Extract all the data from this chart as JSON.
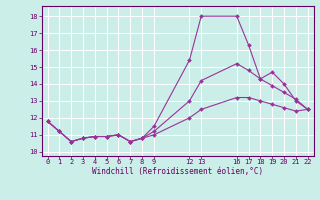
{
  "xlabel": "Windchill (Refroidissement éolien,°C)",
  "background_color": "#cceee8",
  "grid_color": "#ffffff",
  "line_color": "#993399",
  "xlim": [
    -0.5,
    22.5
  ],
  "ylim": [
    9.75,
    18.6
  ],
  "yticks": [
    10,
    11,
    12,
    13,
    14,
    15,
    16,
    17,
    18
  ],
  "xticks": [
    0,
    1,
    2,
    3,
    4,
    5,
    6,
    7,
    8,
    9,
    12,
    13,
    16,
    17,
    18,
    19,
    20,
    21,
    22
  ],
  "series": [
    {
      "x": [
        0,
        1,
        2,
        3,
        4,
        5,
        6,
        7,
        8,
        9,
        12,
        13,
        16,
        17,
        18,
        19,
        20,
        21,
        22
      ],
      "y": [
        11.8,
        11.2,
        10.6,
        10.8,
        10.9,
        10.9,
        11.0,
        10.6,
        10.8,
        11.5,
        15.4,
        18.0,
        18.0,
        16.3,
        14.3,
        14.7,
        14.0,
        13.0,
        12.5
      ]
    },
    {
      "x": [
        0,
        1,
        2,
        3,
        4,
        5,
        6,
        7,
        8,
        9,
        12,
        13,
        16,
        17,
        18,
        19,
        20,
        21,
        22
      ],
      "y": [
        11.8,
        11.2,
        10.6,
        10.8,
        10.9,
        10.9,
        11.0,
        10.6,
        10.8,
        11.2,
        13.0,
        14.2,
        15.2,
        14.8,
        14.3,
        13.9,
        13.5,
        13.1,
        12.5
      ]
    },
    {
      "x": [
        0,
        1,
        2,
        3,
        4,
        5,
        6,
        7,
        8,
        9,
        12,
        13,
        16,
        17,
        18,
        19,
        20,
        21,
        22
      ],
      "y": [
        11.8,
        11.2,
        10.6,
        10.8,
        10.9,
        10.9,
        11.0,
        10.6,
        10.8,
        11.0,
        12.0,
        12.5,
        13.2,
        13.2,
        13.0,
        12.8,
        12.6,
        12.4,
        12.5
      ]
    }
  ]
}
